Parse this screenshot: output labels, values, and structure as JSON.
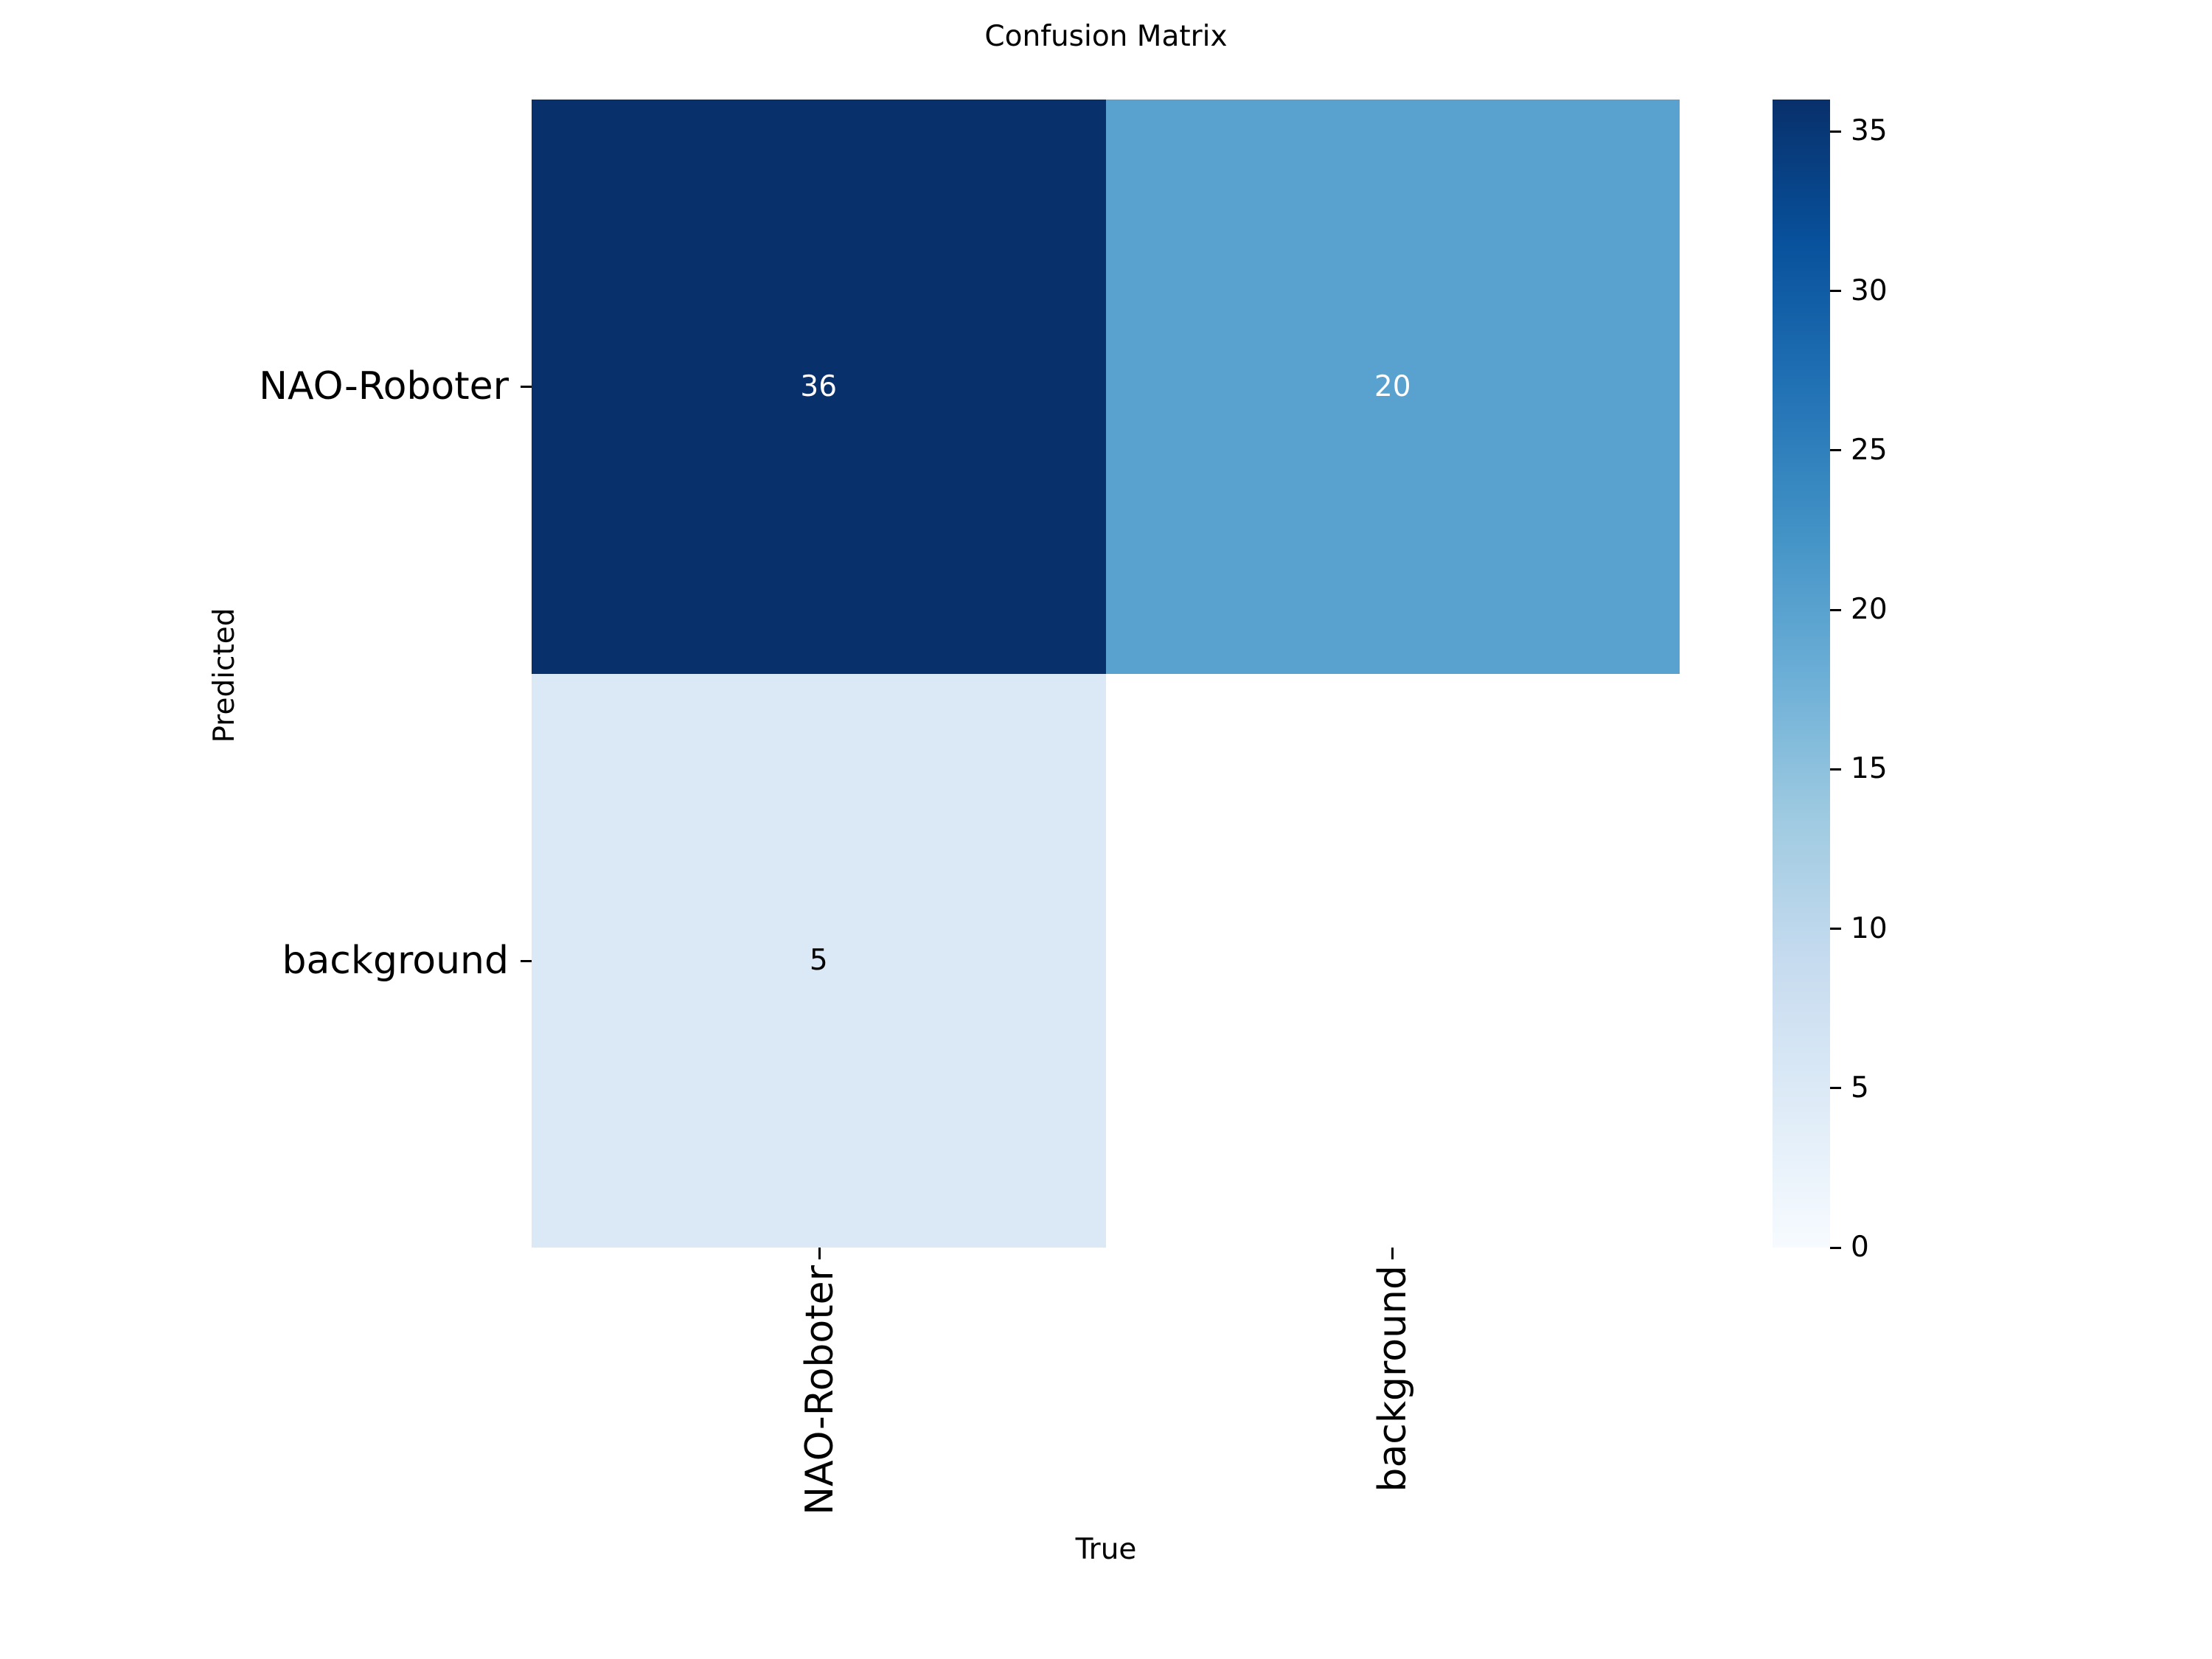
{
  "figure": {
    "background_color": "#ffffff"
  },
  "chart_data": {
    "type": "heatmap",
    "title": "Confusion Matrix",
    "xlabel": "True",
    "ylabel": "Predicted",
    "x_categories": [
      "NAO-Roboter",
      "background"
    ],
    "y_categories": [
      "NAO-Roboter",
      "background"
    ],
    "matrix": [
      [
        36,
        20
      ],
      [
        5,
        null
      ]
    ],
    "vmin": 0,
    "vmax": 36,
    "colormap": "Blues",
    "grid": false,
    "legend_position": "colorbar-right",
    "colorbar_ticks": [
      35,
      30,
      25,
      20,
      15,
      10,
      5,
      0
    ],
    "colormap_stops": [
      "#08306b",
      "#08519c",
      "#2171b5",
      "#4292c6",
      "#6baed6",
      "#9ecae1",
      "#c6dbef",
      "#deebf7",
      "#f7fbff"
    ],
    "cells": [
      {
        "row": 0,
        "col": 0,
        "value": 36,
        "label": "36",
        "color": "#08306b",
        "text_color": "#ffffff"
      },
      {
        "row": 0,
        "col": 1,
        "value": 20,
        "label": "20",
        "color": "#59a2cf",
        "text_color": "#ffffff"
      },
      {
        "row": 1,
        "col": 0,
        "value": 5,
        "label": "5",
        "color": "#dbe9f6",
        "text_color": "#000000"
      },
      {
        "row": 1,
        "col": 1,
        "value": null,
        "label": "",
        "color": "#ffffff",
        "text_color": "#000000"
      }
    ]
  }
}
